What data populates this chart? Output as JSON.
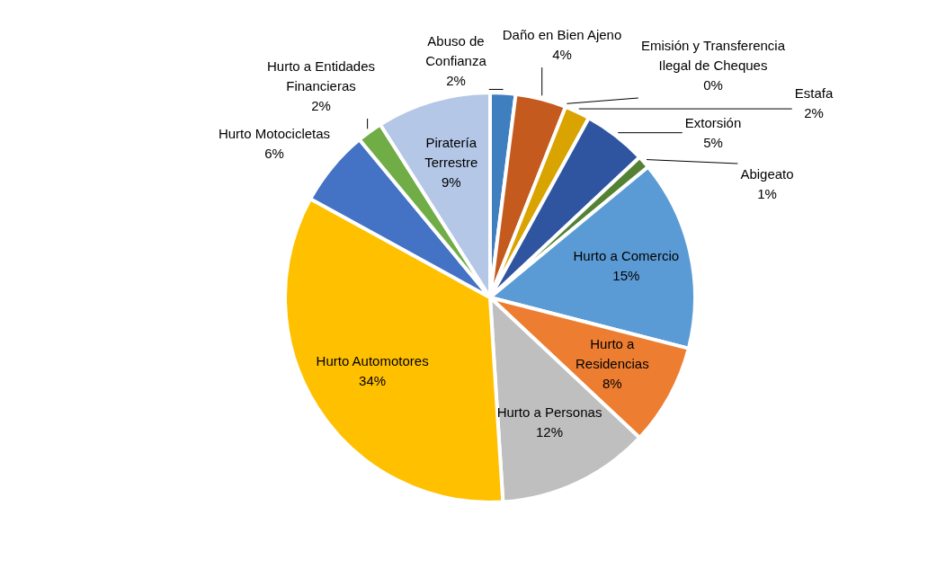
{
  "chart_data": {
    "type": "pie",
    "categories": [
      "Abuso de Confianza",
      "Daño en Bien Ajeno",
      "Emisión y Transferencia Ilegal de Cheques",
      "Estafa",
      "Extorsión",
      "Abigeato",
      "Hurto a Comercio",
      "Hurto a Residencias",
      "Hurto a Personas",
      "Hurto Automotores",
      "Hurto Motocicletas",
      "Hurto a Entidades Financieras",
      "Piratería Terrestre"
    ],
    "values": [
      2,
      4,
      0,
      2,
      5,
      1,
      15,
      8,
      12,
      34,
      6,
      2,
      9
    ],
    "value_labels": [
      "2%",
      "4%",
      "0%",
      "2%",
      "5%",
      "1%",
      "15%",
      "8%",
      "12%",
      "34%",
      "6%",
      "2%",
      "9%"
    ],
    "colors": [
      "#3f7fbf",
      "#c55a1e",
      "#a5a5a5",
      "#d9a300",
      "#2f55a0",
      "#548235",
      "#5b9bd5",
      "#ed7d31",
      "#bfbfbf",
      "#ffc000",
      "#4472c4",
      "#70ad47",
      "#b4c7e7"
    ],
    "legend": false
  }
}
